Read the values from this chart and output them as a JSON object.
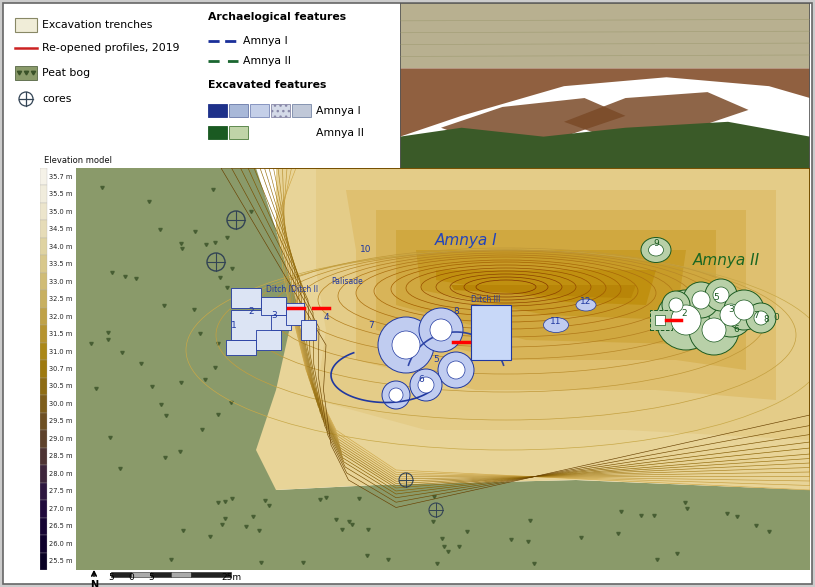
{
  "elevation_values": [
    "35.7 m",
    "35.5 m",
    "35.0 m",
    "34.5 m",
    "34.0 m",
    "33.5 m",
    "33.0 m",
    "32.5 m",
    "32.0 m",
    "31.5 m",
    "31.0 m",
    "30.7 m",
    "30.5 m",
    "30.0 m",
    "29.5 m",
    "29.0 m",
    "28.5 m",
    "28.0 m",
    "27.5 m",
    "27.0 m",
    "26.5 m",
    "26.0 m",
    "25.5 m"
  ],
  "elev_colors": [
    "#f5f2e8",
    "#f0ecdc",
    "#eae4cc",
    "#e4dcbc",
    "#ddd4a8",
    "#d6ca94",
    "#cfbf7e",
    "#c8b468",
    "#c0a850",
    "#b89c38",
    "#af9020",
    "#a68408",
    "#9c7808",
    "#8e6a14",
    "#805c1e",
    "#724e28",
    "#644030",
    "#573238",
    "#4a2440",
    "#3d1640",
    "#300838",
    "#240030",
    "#1a0028"
  ],
  "peat_color": "#8a9a6a",
  "plateau_light": "#f8f4dc",
  "plateau_mid": "#e8d890",
  "plateau_dark": "#c09040",
  "contour_color": "#c8a860",
  "amnya_i_color": "#2244aa",
  "amnya_ii_color": "#1a6622",
  "photo_bg": "#6a7840",
  "outer_border": "#666666",
  "legend_border": "#888888"
}
